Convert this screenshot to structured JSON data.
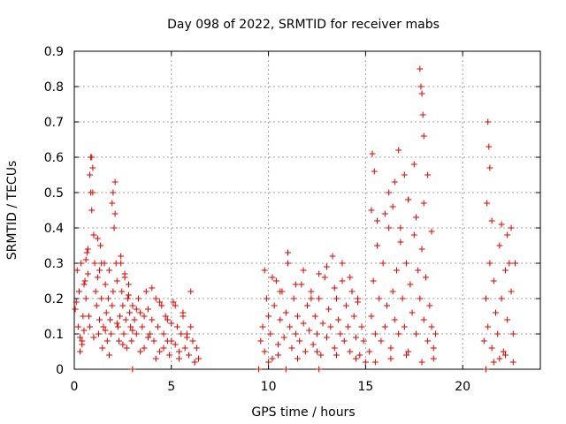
{
  "chart_data": {
    "type": "scatter",
    "title": "Day 098 of 2022, SRMTID for receiver mabs",
    "xlabel": "GPS time / hours",
    "ylabel": "SRMTID / TECUs",
    "xlim": [
      0,
      24
    ],
    "ylim": [
      0,
      0.9
    ],
    "x_ticks": [
      0,
      5,
      10,
      15,
      20
    ],
    "x_tick_labels": [
      "0",
      "5",
      "10",
      "15",
      "20"
    ],
    "y_ticks": [
      0,
      0.1,
      0.2,
      0.3,
      0.4,
      0.5,
      0.6,
      0.7,
      0.8,
      0.9
    ],
    "y_tick_labels": [
      "0",
      "0.1",
      "0.2",
      "0.3",
      "0.4",
      "0.5",
      "0.6",
      "0.7",
      "0.8",
      "0.9"
    ],
    "grid": true,
    "legend": "none",
    "marker": "+",
    "color": "#e00000",
    "series": [
      {
        "x": [
          0.05,
          0.1,
          0.15,
          0.2,
          0.25,
          0.3,
          0.35,
          0.4,
          0.45,
          0.5,
          0.55,
          0.6,
          0.65,
          0.7,
          0.75,
          0.8,
          0.85,
          0.9,
          0.95,
          1.0,
          1.05,
          1.1,
          1.15,
          1.2,
          1.25,
          1.3,
          1.35,
          1.4,
          1.45,
          1.5,
          1.55,
          1.6,
          1.65,
          1.7,
          1.75,
          1.8,
          1.85,
          1.9,
          1.95,
          2.0,
          2.05,
          2.1,
          2.15,
          2.2,
          2.25,
          2.3,
          2.35,
          2.4,
          2.45,
          2.5,
          2.55,
          2.6,
          2.65,
          2.7,
          2.75,
          2.8,
          2.85,
          2.9,
          2.95,
          3.0,
          3.1,
          3.2,
          3.3,
          3.4,
          3.5,
          3.6,
          3.7,
          3.8,
          3.9,
          4.0,
          4.1,
          4.2,
          4.3,
          4.4,
          4.5,
          4.6,
          4.7,
          4.8,
          4.9,
          5.0,
          5.1,
          5.2,
          5.3,
          5.4,
          5.5,
          5.6,
          5.7,
          5.8,
          5.9,
          6.0,
          6.1,
          6.2,
          6.3,
          6.4,
          0.9,
          0.95,
          0.85,
          2.0,
          2.1,
          1.95,
          0.5,
          0.6,
          0.7,
          1.2,
          1.3,
          1.4,
          2.4,
          2.6,
          2.8,
          3.2,
          3.6,
          4.0,
          4.4,
          4.8,
          5.2,
          5.6,
          6.0,
          0.3,
          0.4,
          0.8,
          1.0,
          1.6,
          1.8,
          2.2,
          2.5,
          3.0,
          3.4,
          3.8,
          4.2,
          4.6,
          5.0,
          5.4,
          5.8,
          6.2,
          3.0
        ],
        "y": [
          0.17,
          0.19,
          0.28,
          0.12,
          0.22,
          0.09,
          0.3,
          0.08,
          0.15,
          0.11,
          0.25,
          0.2,
          0.33,
          0.27,
          0.15,
          0.55,
          0.6,
          0.45,
          0.5,
          0.38,
          0.3,
          0.22,
          0.18,
          0.26,
          0.1,
          0.14,
          0.35,
          0.2,
          0.06,
          0.12,
          0.3,
          0.24,
          0.16,
          0.08,
          0.2,
          0.28,
          0.14,
          0.1,
          0.18,
          0.22,
          0.4,
          0.53,
          0.3,
          0.25,
          0.12,
          0.08,
          0.15,
          0.3,
          0.22,
          0.18,
          0.1,
          0.26,
          0.14,
          0.06,
          0.2,
          0.24,
          0.16,
          0.12,
          0.08,
          0.18,
          0.14,
          0.1,
          0.2,
          0.16,
          0.12,
          0.06,
          0.22,
          0.17,
          0.1,
          0.14,
          0.08,
          0.2,
          0.12,
          0.05,
          0.18,
          0.1,
          0.15,
          0.08,
          0.04,
          0.13,
          0.19,
          0.07,
          0.12,
          0.03,
          0.1,
          0.15,
          0.06,
          0.09,
          0.04,
          0.12,
          0.08,
          0.02,
          0.06,
          0.03,
          0.6,
          0.57,
          0.5,
          0.5,
          0.44,
          0.47,
          0.24,
          0.31,
          0.34,
          0.37,
          0.28,
          0.3,
          0.32,
          0.27,
          0.21,
          0.17,
          0.15,
          0.23,
          0.19,
          0.14,
          0.18,
          0.16,
          0.22,
          0.05,
          0.07,
          0.12,
          0.09,
          0.11,
          0.04,
          0.13,
          0.07,
          0.11,
          0.05,
          0.09,
          0.03,
          0.06,
          0.08,
          0.05,
          0.1,
          0.02,
          0.0
        ]
      },
      {
        "x": [
          9.6,
          9.7,
          9.8,
          9.9,
          10.0,
          10.1,
          10.2,
          10.3,
          10.4,
          10.5,
          10.6,
          10.7,
          10.8,
          10.9,
          11.0,
          11.1,
          11.2,
          11.3,
          11.4,
          11.5,
          11.6,
          11.7,
          11.8,
          11.9,
          12.0,
          12.1,
          12.2,
          12.3,
          12.4,
          12.5,
          12.6,
          12.7,
          12.8,
          12.9,
          13.0,
          13.1,
          13.2,
          13.3,
          13.4,
          13.5,
          13.6,
          13.7,
          13.8,
          13.9,
          14.0,
          14.1,
          14.2,
          14.3,
          14.4,
          14.5,
          14.6,
          14.7,
          14.8,
          14.9,
          15.0,
          9.8,
          10.2,
          10.6,
          11.0,
          11.4,
          11.8,
          12.2,
          12.6,
          13.0,
          13.4,
          13.8,
          14.2,
          14.6,
          10.0,
          10.5,
          11.5,
          12.5,
          13.5,
          14.5,
          9.5,
          10.9,
          12.6
        ],
        "y": [
          0.08,
          0.12,
          0.05,
          0.2,
          0.15,
          0.1,
          0.03,
          0.18,
          0.25,
          0.07,
          0.14,
          0.22,
          0.09,
          0.16,
          0.3,
          0.12,
          0.06,
          0.2,
          0.1,
          0.15,
          0.08,
          0.24,
          0.13,
          0.05,
          0.18,
          0.11,
          0.22,
          0.07,
          0.15,
          0.1,
          0.2,
          0.04,
          0.13,
          0.26,
          0.09,
          0.17,
          0.12,
          0.32,
          0.06,
          0.2,
          0.14,
          0.1,
          0.25,
          0.08,
          0.18,
          0.12,
          0.05,
          0.22,
          0.15,
          0.09,
          0.2,
          0.04,
          0.12,
          0.08,
          0.02,
          0.28,
          0.26,
          0.22,
          0.33,
          0.24,
          0.28,
          0.2,
          0.27,
          0.29,
          0.23,
          0.3,
          0.26,
          0.19,
          0.02,
          0.04,
          0.03,
          0.05,
          0.04,
          0.03,
          0.0,
          0.0,
          0.0
        ]
      },
      {
        "x": [
          15.2,
          15.3,
          15.4,
          15.5,
          15.6,
          15.7,
          15.8,
          15.9,
          16.0,
          16.1,
          16.2,
          16.3,
          16.4,
          16.5,
          16.6,
          16.7,
          16.8,
          16.9,
          17.0,
          17.1,
          17.2,
          17.3,
          17.4,
          17.5,
          17.6,
          17.7,
          17.8,
          17.9,
          18.0,
          18.1,
          18.2,
          18.3,
          18.4,
          18.5,
          18.6,
          15.35,
          15.45,
          16.2,
          16.5,
          16.7,
          17.0,
          17.2,
          17.5,
          17.8,
          17.85,
          17.9,
          17.95,
          18.0,
          18.2,
          15.3,
          15.6,
          16.0,
          16.4,
          16.8,
          17.2,
          17.6,
          18.0,
          18.4,
          15.5,
          16.3,
          17.1,
          17.9,
          18.5
        ],
        "y": [
          0.05,
          0.15,
          0.25,
          0.1,
          0.35,
          0.2,
          0.08,
          0.3,
          0.12,
          0.18,
          0.4,
          0.06,
          0.22,
          0.14,
          0.28,
          0.1,
          0.36,
          0.2,
          0.12,
          0.3,
          0.05,
          0.24,
          0.16,
          0.38,
          0.1,
          0.28,
          0.2,
          0.34,
          0.14,
          0.26,
          0.08,
          0.18,
          0.12,
          0.06,
          0.1,
          0.61,
          0.56,
          0.5,
          0.53,
          0.62,
          0.55,
          0.48,
          0.58,
          0.85,
          0.8,
          0.78,
          0.72,
          0.66,
          0.55,
          0.45,
          0.42,
          0.44,
          0.46,
          0.4,
          0.48,
          0.43,
          0.47,
          0.39,
          0.02,
          0.03,
          0.04,
          0.02,
          0.03
        ]
      },
      {
        "x": [
          21.1,
          21.2,
          21.3,
          21.4,
          21.5,
          21.6,
          21.7,
          21.8,
          21.9,
          22.0,
          22.1,
          22.2,
          22.3,
          22.4,
          22.5,
          22.6,
          22.7,
          21.3,
          21.35,
          21.4,
          21.25,
          21.5,
          22.0,
          22.3,
          22.5,
          21.6,
          21.9,
          22.2,
          22.6,
          21.2
        ],
        "y": [
          0.08,
          0.2,
          0.12,
          0.3,
          0.06,
          0.25,
          0.16,
          0.1,
          0.35,
          0.2,
          0.05,
          0.28,
          0.14,
          0.3,
          0.22,
          0.1,
          0.3,
          0.7,
          0.63,
          0.57,
          0.47,
          0.42,
          0.41,
          0.38,
          0.4,
          0.02,
          0.03,
          0.04,
          0.02,
          0.0
        ]
      }
    ]
  }
}
